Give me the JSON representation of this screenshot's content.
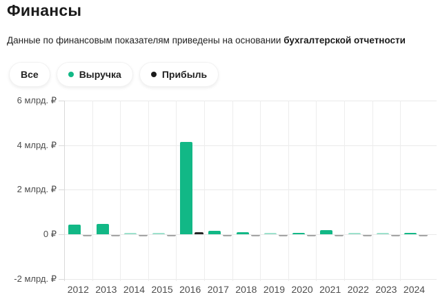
{
  "header": {
    "title": "Финансы",
    "subtitle_text": "Данные по финансовым показателям приведены на основании ",
    "subtitle_bold": "бухгалтерской отчетности"
  },
  "legend": {
    "chips": [
      {
        "name": "all",
        "label": "Все",
        "dot": null
      },
      {
        "name": "revenue",
        "label": "Выручка",
        "dot": "#12b886"
      },
      {
        "name": "profit",
        "label": "Прибыль",
        "dot": "#1a1a1a"
      }
    ]
  },
  "chart_data": {
    "type": "bar",
    "title": "Финансы",
    "unit": "млрд ₽",
    "categories": [
      "2012",
      "2013",
      "2014",
      "2015",
      "2016",
      "2017",
      "2018",
      "2019",
      "2020",
      "2021",
      "2022",
      "2023",
      "2024"
    ],
    "series": [
      {
        "key": "revenue",
        "name": "Выручка",
        "color": "#12b886",
        "values": [
          0.43,
          0.46,
          0.02,
          0.03,
          4.15,
          0.14,
          0.1,
          0.04,
          0.07,
          0.18,
          0.04,
          0.05,
          0.07
        ]
      },
      {
        "key": "profit",
        "name": "Прибыль",
        "color": "#262626",
        "values": [
          -0.04,
          -0.04,
          -0.03,
          -0.03,
          0.1,
          -0.03,
          -0.02,
          -0.03,
          -0.03,
          -0.05,
          -0.04,
          -0.02,
          -0.03
        ]
      }
    ],
    "y_ticks": [
      {
        "value": 6,
        "label": "6 млрд. ₽"
      },
      {
        "value": 4,
        "label": "4 млрд. ₽"
      },
      {
        "value": 2,
        "label": "2 млрд. ₽"
      },
      {
        "value": 0,
        "label": "0 ₽"
      },
      {
        "value": -2,
        "label": "-2 млрд. ₽"
      }
    ],
    "ylim": [
      -2.1,
      6
    ],
    "grid": true,
    "legend_position": "top"
  }
}
